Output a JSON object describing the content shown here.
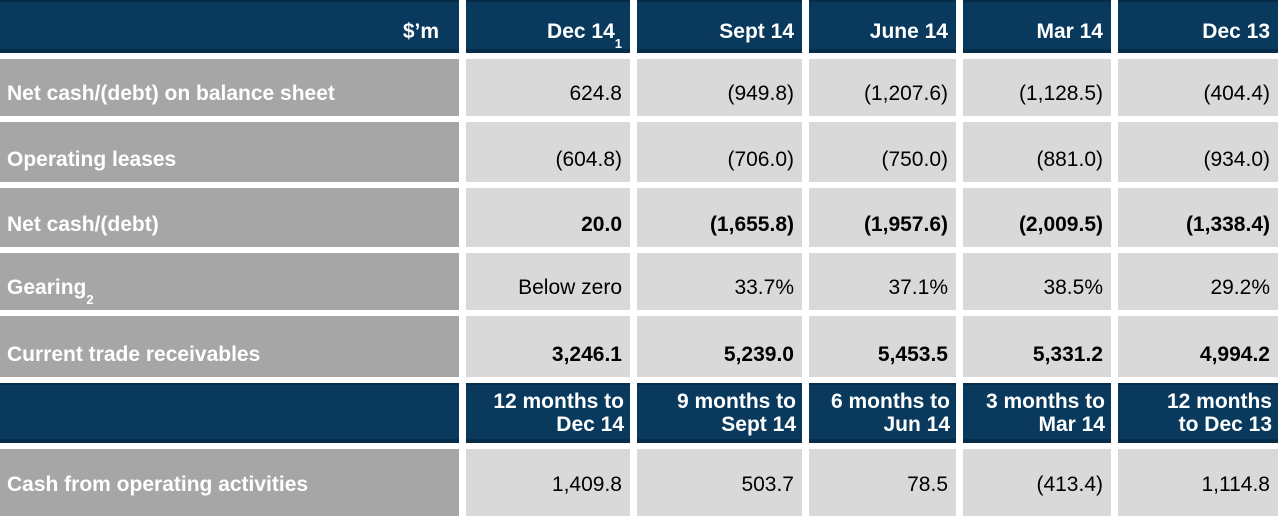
{
  "header": {
    "unit": "$’m",
    "cols": [
      {
        "label": "Dec 14",
        "sup": "1"
      },
      {
        "label": "Sept 14",
        "sup": ""
      },
      {
        "label": "June 14",
        "sup": ""
      },
      {
        "label": "Mar 14",
        "sup": ""
      },
      {
        "label": "Dec 13",
        "sup": ""
      }
    ]
  },
  "rows": [
    {
      "label": "Net cash/(debt) on balance sheet",
      "sup": "",
      "values": [
        "624.8",
        "(949.8)",
        "(1,207.6)",
        "(1,128.5)",
        "(404.4)"
      ]
    },
    {
      "label": "Operating leases",
      "sup": "",
      "values": [
        "(604.8)",
        "(706.0)",
        "(750.0)",
        "(881.0)",
        "(934.0)"
      ]
    },
    {
      "label": "Net cash/(debt)",
      "sup": "",
      "values": [
        "20.0",
        "(1,655.8)",
        "(1,957.6)",
        "(2,009.5)",
        "(1,338.4)"
      ]
    },
    {
      "label": "Gearing",
      "sup": "2",
      "values": [
        "Below zero",
        "33.7%",
        "37.1%",
        "38.5%",
        "29.2%"
      ]
    },
    {
      "label": "Current trade receivables",
      "sup": "",
      "values": [
        "3,246.1",
        "5,239.0",
        "5,453.5",
        "5,331.2",
        "4,994.2"
      ]
    }
  ],
  "period_header": [
    {
      "line1": "12 months to",
      "line2": "Dec 14"
    },
    {
      "line1": "9 months to",
      "line2": "Sept 14"
    },
    {
      "line1": "6 months to",
      "line2": "Jun 14"
    },
    {
      "line1": "3 months to",
      "line2": "Mar 14"
    },
    {
      "line1": "12 months",
      "line2": "to Dec 13"
    }
  ],
  "cash_row": {
    "label": "Cash from operating activities",
    "values": [
      "1,409.8",
      "503.7",
      "78.5",
      "(413.4)",
      "1,114.8"
    ]
  },
  "colors": {
    "navy": "#09395c",
    "label_gray": "#a6a6a6",
    "cell_gray": "#d9d9d9",
    "text_on_navy": "#ffffff",
    "text_on_gray": "#000000"
  }
}
